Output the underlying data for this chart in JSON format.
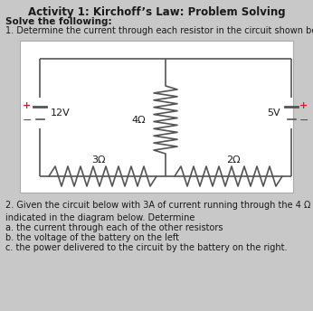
{
  "title": "Activity 1: Kirchoff’s Law: Problem Solving",
  "bg_color": "#c8c8c8",
  "circuit_bg": "#ffffff",
  "text_color": "#1a1a1a",
  "line_color": "#555555",
  "solve_text": "Solve the following:",
  "problem1_text": "1. Determine the current through each resistor in the circuit shown below.",
  "problem2_text": "2. Given the circuit below with 3A of current running through the 4 Ω resistor as\nindicated in the diagram below. Determine",
  "sub_a": "a. the current through each of the other resistors",
  "sub_b": "b. the voltage of the battery on the left",
  "sub_c": "c. the power delivered to the circuit by the battery on the right.",
  "voltage_left": "12V",
  "voltage_right": "5V",
  "resistor_top": "4Ω",
  "resistor_bot_left": "3Ω",
  "resistor_bot_right": "2Ω",
  "plus_color": "#cc2222",
  "minus_color": "#555555"
}
